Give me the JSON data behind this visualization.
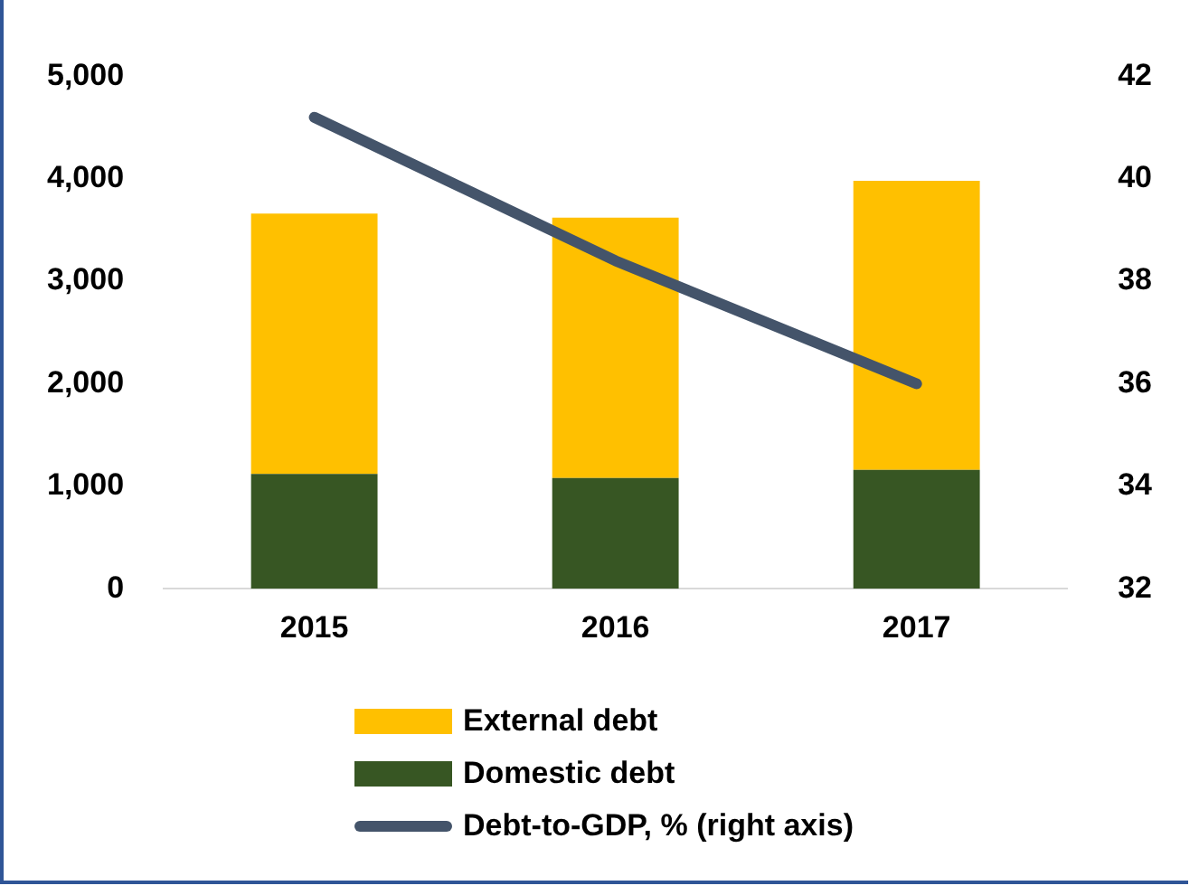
{
  "chart_data": {
    "type": "bar",
    "stacked": true,
    "categories": [
      "2015",
      "2016",
      "2017"
    ],
    "series": [
      {
        "name": "Domestic debt",
        "color": "#375623",
        "values": [
          1120,
          1080,
          1160
        ]
      },
      {
        "name": "External debt",
        "color": "#ffc000",
        "values": [
          2540,
          2540,
          2820
        ]
      },
      {
        "name": "Debt-to-GDP, % (right axis)",
        "type": "line",
        "axis": "y2",
        "color": "#44546a",
        "values": [
          41.2,
          38.4,
          36.0
        ]
      }
    ],
    "ylim": [
      0,
      5000
    ],
    "yticks": [
      {
        "value": 0,
        "label": "0"
      },
      {
        "value": 1000,
        "label": "1,000"
      },
      {
        "value": 2000,
        "label": "2,000"
      },
      {
        "value": 3000,
        "label": "3,000"
      },
      {
        "value": 4000,
        "label": "4,000"
      },
      {
        "value": 5000,
        "label": "5,000"
      }
    ],
    "y2lim": [
      32,
      42
    ],
    "y2ticks": [
      32,
      34,
      36,
      38,
      40,
      42
    ],
    "grid": false,
    "legend": "bottom",
    "marker": "none"
  }
}
